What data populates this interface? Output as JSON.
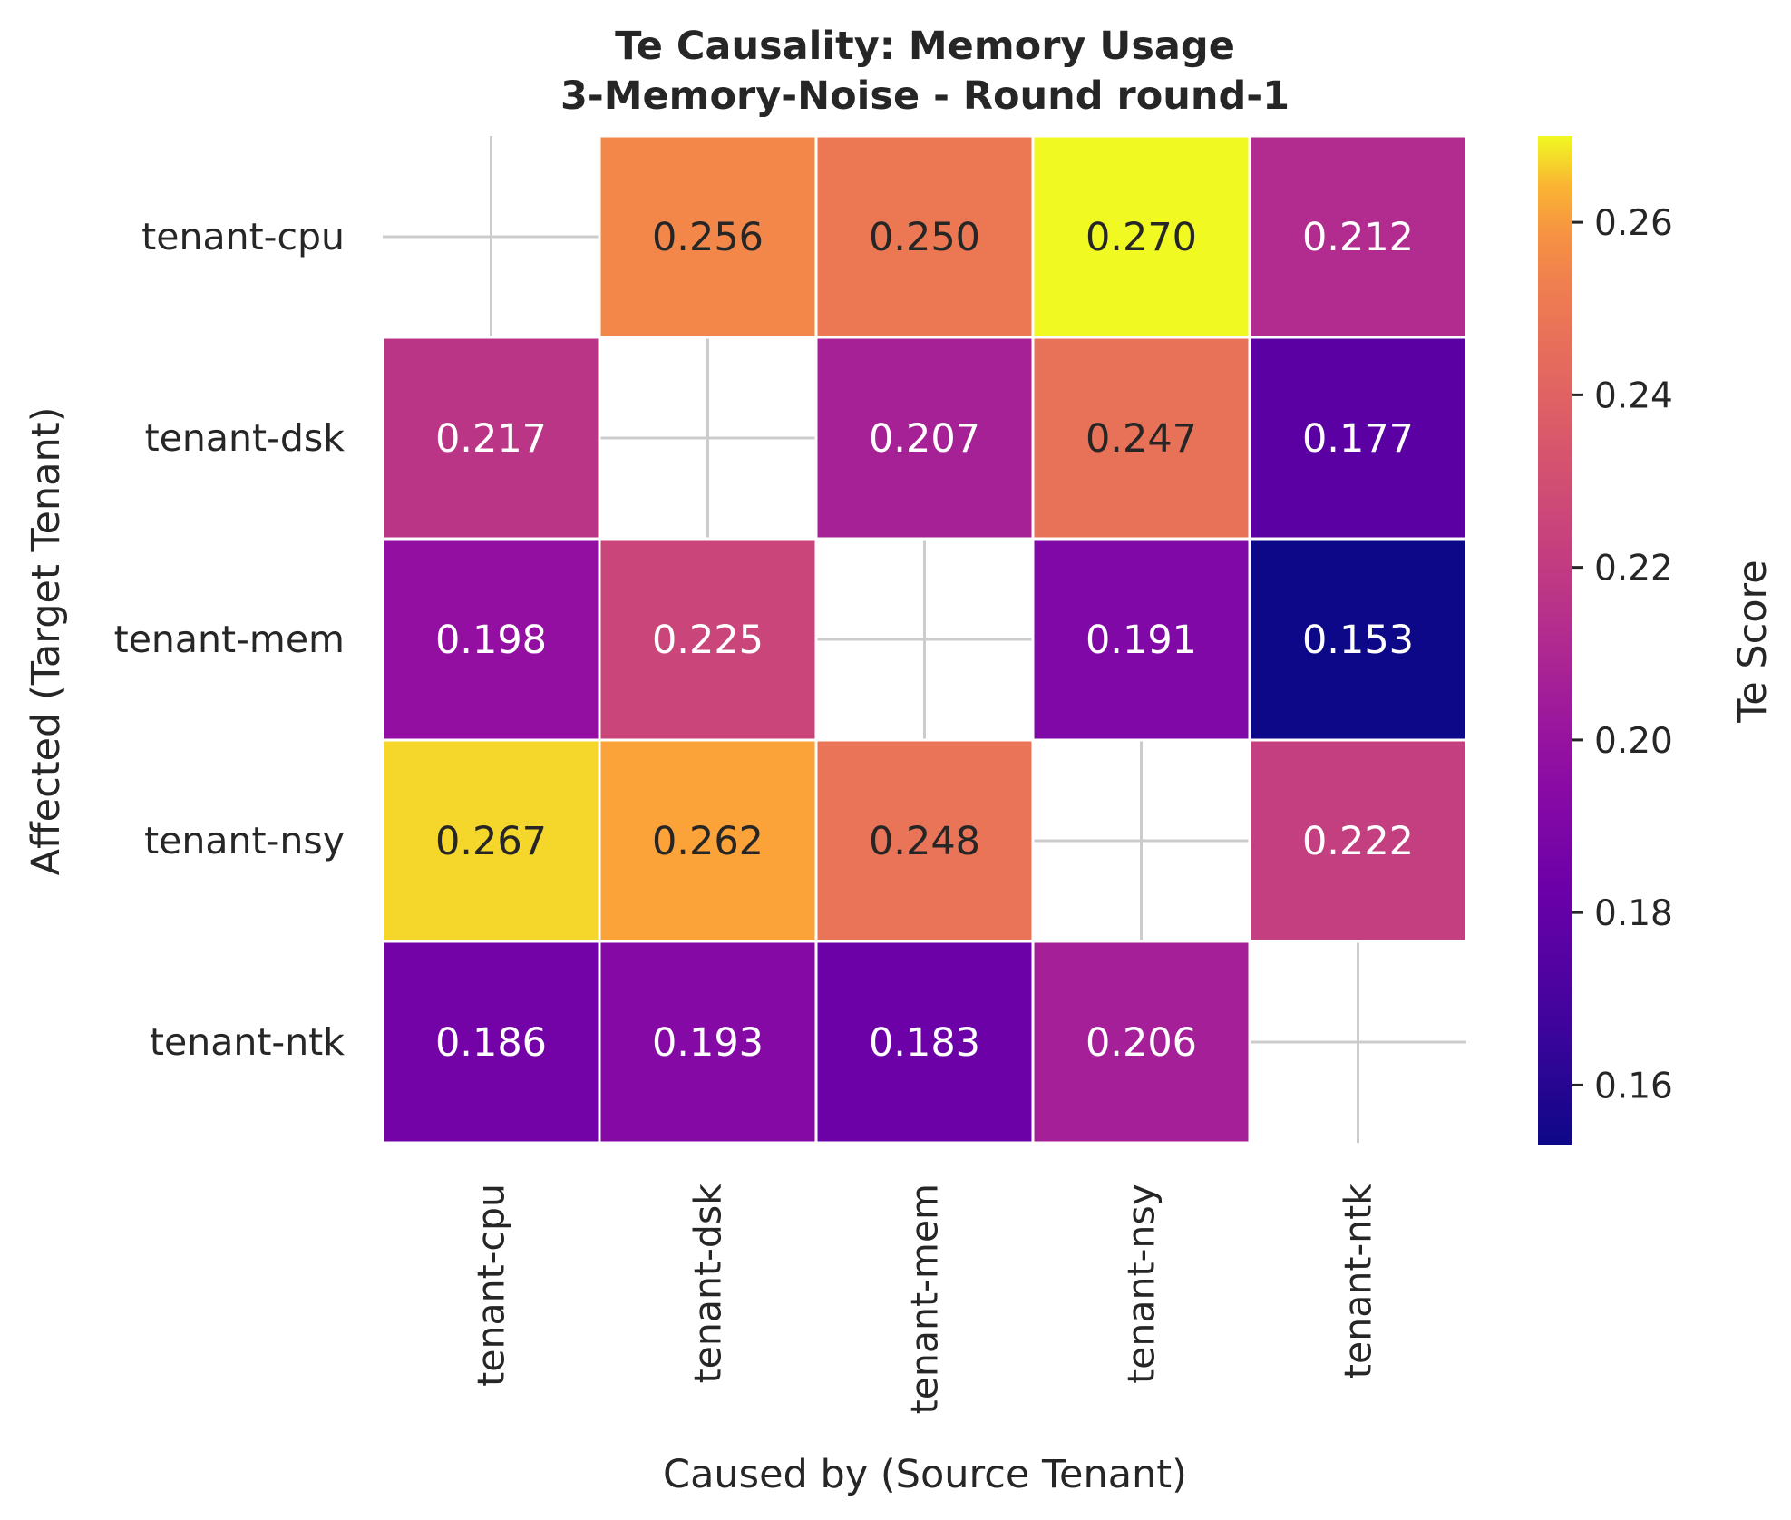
{
  "chart_data": {
    "type": "heatmap",
    "title": "Te Causality: Memory Usage",
    "subtitle": "3-Memory-Noise - Round round-1",
    "xlabel": "Caused by (Source Tenant)",
    "ylabel": "Affected (Target Tenant)",
    "x_categories": [
      "tenant-cpu",
      "tenant-dsk",
      "tenant-mem",
      "tenant-nsy",
      "tenant-ntk"
    ],
    "y_categories": [
      "tenant-cpu",
      "tenant-dsk",
      "tenant-mem",
      "tenant-nsy",
      "tenant-ntk"
    ],
    "values": [
      [
        null,
        0.256,
        0.25,
        0.27,
        0.212
      ],
      [
        0.217,
        null,
        0.207,
        0.247,
        0.177
      ],
      [
        0.198,
        0.225,
        null,
        0.191,
        0.153
      ],
      [
        0.267,
        0.262,
        0.248,
        null,
        0.222
      ],
      [
        0.186,
        0.193,
        0.183,
        0.206,
        null
      ]
    ],
    "value_labels": [
      [
        "",
        "0.256",
        "0.250",
        "0.270",
        "0.212"
      ],
      [
        "0.217",
        "",
        "0.207",
        "0.247",
        "0.177"
      ],
      [
        "0.198",
        "0.225",
        "",
        "0.191",
        "0.153"
      ],
      [
        "0.267",
        "0.262",
        "0.248",
        "",
        "0.222"
      ],
      [
        "0.186",
        "0.193",
        "0.183",
        "0.206",
        ""
      ]
    ],
    "colormap": "plasma",
    "colorbar": {
      "label": "Te Score",
      "range": [
        0.153,
        0.27
      ],
      "ticks": [
        0.16,
        0.18,
        0.2,
        0.22,
        0.24,
        0.26
      ],
      "tick_labels": [
        "0.16",
        "0.18",
        "0.20",
        "0.22",
        "0.24",
        "0.26"
      ]
    },
    "grid": true
  }
}
